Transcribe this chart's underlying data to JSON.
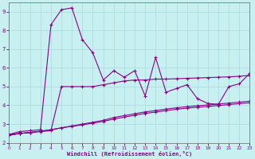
{
  "xlabel": "Windchill (Refroidissement éolien,°C)",
  "bg_color": "#c8f0f0",
  "grid_color": "#a8d8e0",
  "line_color": "#880088",
  "xlim": [
    0,
    23
  ],
  "ylim": [
    2,
    9.5
  ],
  "xticks": [
    0,
    1,
    2,
    3,
    4,
    5,
    6,
    7,
    8,
    9,
    10,
    11,
    12,
    13,
    14,
    15,
    16,
    17,
    18,
    19,
    20,
    21,
    22,
    23
  ],
  "yticks": [
    2,
    3,
    4,
    5,
    6,
    7,
    8,
    9
  ],
  "series_jagged_x": [
    0,
    1,
    2,
    3,
    4,
    5,
    6,
    7,
    8,
    9,
    10,
    11,
    12,
    13,
    14,
    15,
    16,
    17,
    18,
    19,
    20,
    21,
    22,
    23
  ],
  "series_jagged_y": [
    2.45,
    2.6,
    2.65,
    2.7,
    8.3,
    9.1,
    9.2,
    7.5,
    6.8,
    5.35,
    5.85,
    5.5,
    5.85,
    4.5,
    6.55,
    4.7,
    4.9,
    5.1,
    4.35,
    4.1,
    4.05,
    5.0,
    5.15,
    5.7
  ],
  "series_flat_x": [
    0,
    1,
    2,
    3,
    4,
    5,
    6,
    7,
    8,
    9,
    10,
    11,
    12,
    13,
    14,
    15,
    16,
    17,
    18,
    19,
    20,
    21,
    22,
    23
  ],
  "series_flat_y": [
    2.45,
    2.5,
    2.55,
    2.6,
    2.65,
    5.0,
    5.0,
    5.0,
    5.0,
    5.1,
    5.2,
    5.3,
    5.35,
    5.35,
    5.4,
    5.4,
    5.42,
    5.44,
    5.46,
    5.48,
    5.5,
    5.52,
    5.55,
    5.6
  ],
  "series_lower1_x": [
    0,
    1,
    2,
    3,
    4,
    5,
    6,
    7,
    8,
    9,
    10,
    11,
    12,
    13,
    14,
    15,
    16,
    17,
    18,
    19,
    20,
    21,
    22,
    23
  ],
  "series_lower1_y": [
    2.4,
    2.5,
    2.55,
    2.62,
    2.7,
    2.8,
    2.9,
    3.0,
    3.1,
    3.2,
    3.35,
    3.45,
    3.55,
    3.65,
    3.72,
    3.8,
    3.87,
    3.93,
    3.98,
    4.02,
    4.07,
    4.12,
    4.17,
    4.22
  ],
  "series_lower2_x": [
    0,
    1,
    2,
    3,
    4,
    5,
    6,
    7,
    8,
    9,
    10,
    11,
    12,
    13,
    14,
    15,
    16,
    17,
    18,
    19,
    20,
    21,
    22,
    23
  ],
  "series_lower2_y": [
    2.4,
    2.5,
    2.55,
    2.62,
    2.7,
    2.8,
    2.88,
    2.96,
    3.05,
    3.14,
    3.27,
    3.37,
    3.47,
    3.57,
    3.64,
    3.72,
    3.79,
    3.85,
    3.9,
    3.94,
    3.99,
    4.04,
    4.09,
    4.14
  ]
}
